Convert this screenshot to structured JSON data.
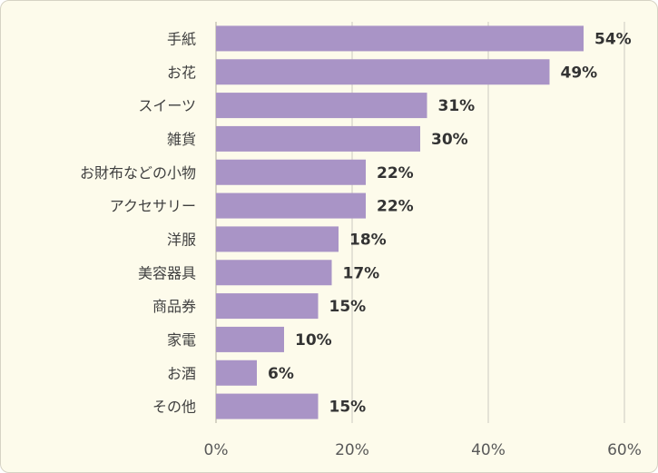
{
  "chart_data": {
    "type": "bar",
    "orientation": "horizontal",
    "categories": [
      "手紙",
      "お花",
      "スイーツ",
      "雑貨",
      "お財布などの小物",
      "アクセサリー",
      "洋服",
      "美容器具",
      "商品券",
      "家電",
      "お酒",
      "その他"
    ],
    "values": [
      54,
      49,
      31,
      30,
      22,
      22,
      18,
      17,
      15,
      10,
      6,
      15
    ],
    "value_labels": [
      "54%",
      "49%",
      "31%",
      "30%",
      "22%",
      "22%",
      "18%",
      "17%",
      "15%",
      "10%",
      "6%",
      "15%"
    ],
    "xlim": [
      0,
      60
    ],
    "x_ticks": [
      0,
      20,
      40,
      60
    ],
    "x_tick_labels": [
      "0%",
      "20%",
      "40%",
      "60%"
    ],
    "grid": true,
    "bar_color": "#a994c6",
    "background_color": "#fdfbeb"
  }
}
